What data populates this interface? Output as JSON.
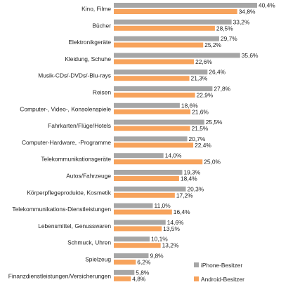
{
  "chart_data": {
    "type": "bar",
    "orientation": "horizontal",
    "grouped": true,
    "value_suffix": "%",
    "categories": [
      "Kino, Filme",
      "Bücher",
      "Elektronikgeräte",
      "Kleidung, Schuhe",
      "Musik-CDs/-DVDs/-Blu-rays",
      "Reisen",
      "Computer-, Video-, Konsolenspiele",
      "Fahrkarten/Flüge/Hotels",
      "Computer-Hardware, -Programme",
      "Telekommunikationsgeräte",
      "Autos/Fahrzeuge",
      "Körperpflegeprodukte, Kosmetik",
      "Telekommunikations-Dienstleistungen",
      "Lebensmittel, Genusswaren",
      "Schmuck, Uhren",
      "Spielzeug",
      "Finanzdienstleistungen/Versicherungen"
    ],
    "series": [
      {
        "name": "iPhone-Besitzer",
        "color": "#a6a6a6",
        "values": [
          40.4,
          33.2,
          29.7,
          35.6,
          26.4,
          27.8,
          18.6,
          25.5,
          20.7,
          14.0,
          19.3,
          20.3,
          11.0,
          14.6,
          10.1,
          9.8,
          5.8
        ],
        "labels": [
          "40,4%",
          "33,2%",
          "29,7%",
          "35,6%",
          "26,4%",
          "27,8%",
          "18,6%",
          "25,5%",
          "20,7%",
          "14,0%",
          "19,3%",
          "20,3%",
          "11,0%",
          "14,6%",
          "10,1%",
          "9,8%",
          "5,8%"
        ]
      },
      {
        "name": "Android-Besitzer",
        "color": "#f7a35c",
        "values": [
          34.8,
          28.5,
          25.2,
          22.6,
          21.3,
          22.9,
          21.6,
          21.5,
          22.4,
          25.0,
          18.4,
          17.2,
          16.4,
          13.5,
          13.2,
          6.2,
          4.8
        ],
        "labels": [
          "34,8%",
          "28,5%",
          "25,2%",
          "22,6%",
          "21,3%",
          "22,9%",
          "21,6%",
          "21,5%",
          "22,4%",
          "25,0%",
          "18,4%",
          "17,2%",
          "16,4%",
          "13,5%",
          "13,2%",
          "6,2%",
          "4,8%"
        ]
      }
    ],
    "xlim": [
      0,
      40.4
    ],
    "grid": false,
    "legend_position": "bottom-right"
  }
}
